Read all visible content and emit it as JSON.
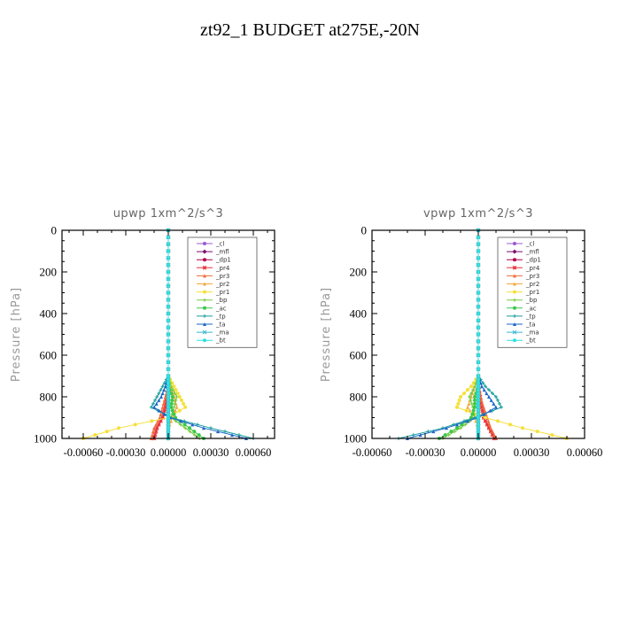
{
  "title": "zt92_1  BUDGET at275E,-20N",
  "chart_data": [
    {
      "type": "line",
      "title": "upwp   1xm^2/s^3",
      "ylabel": "Pressure [hPa]",
      "xlim": [
        -0.00075,
        0.00075
      ],
      "ylim": [
        0,
        1000
      ],
      "y_inverted": true,
      "xticks": [
        -0.0006,
        -0.0003,
        0.0,
        0.0003,
        0.0006
      ],
      "xtick_labels": [
        "-0.00060",
        "-0.00030",
        "0.00000",
        "0.00030",
        "0.00060"
      ],
      "yticks": [
        0,
        200,
        400,
        600,
        800,
        1000
      ],
      "ytick_labels": [
        "0",
        "200",
        "400",
        "600",
        "800",
        "1000"
      ],
      "legend": "top-right",
      "grid": false,
      "y": [
        0,
        100,
        200,
        300,
        400,
        500,
        600,
        700,
        750,
        800,
        850,
        900,
        950,
        1000
      ],
      "series": [
        {
          "name": "_cl",
          "color": "#9b59d0",
          "values": [
            0,
            0,
            0,
            0,
            0,
            0,
            0,
            0,
            0,
            0,
            0,
            0,
            0,
            0
          ]
        },
        {
          "name": "_mfl",
          "color": "#7b0d6e",
          "values": [
            0,
            0,
            0,
            0,
            0,
            0,
            0,
            0,
            0,
            0,
            0,
            0,
            0,
            0
          ]
        },
        {
          "name": "_dp1",
          "color": "#b0004a",
          "values": [
            0,
            0,
            0,
            0,
            0,
            0,
            0,
            0,
            0,
            0,
            0,
            0,
            0,
            0
          ]
        },
        {
          "name": "_pr4",
          "color": "#e8343c",
          "values": [
            0,
            0,
            0,
            0,
            0,
            0,
            0,
            0,
            0,
            -1e-05,
            -2e-05,
            -4e-05,
            -8e-05,
            -0.0001
          ]
        },
        {
          "name": "_pr3",
          "color": "#f06a3a",
          "values": [
            0,
            0,
            0,
            0,
            0,
            0,
            0,
            0,
            0,
            -2e-05,
            -4e-05,
            -6e-05,
            -0.0001,
            -0.00012
          ]
        },
        {
          "name": "_pr2",
          "color": "#f3a93c",
          "values": [
            0,
            0,
            0,
            0,
            0,
            0,
            0,
            0,
            2e-05,
            4e-05,
            6e-05,
            3e-05,
            0,
            0
          ]
        },
        {
          "name": "_pr1",
          "color": "#f5e03a",
          "values": [
            0,
            0,
            0,
            0,
            0,
            0,
            0,
            0,
            4e-05,
            8e-05,
            0.00012,
            0,
            -0.00035,
            -0.0006
          ]
        },
        {
          "name": "_bp",
          "color": "#7ac943",
          "values": [
            0,
            0,
            0,
            0,
            0,
            0,
            0,
            0,
            2e-05,
            6e-05,
            4e-05,
            2e-05,
            0.00012,
            0.00022
          ]
        },
        {
          "name": "_ac",
          "color": "#3cc84a",
          "values": [
            0,
            0,
            0,
            0,
            0,
            0,
            0,
            0,
            0,
            3e-05,
            2e-05,
            5e-05,
            0.00015,
            0.00025
          ]
        },
        {
          "name": "_tp",
          "color": "#1b9e9e",
          "values": [
            0,
            0,
            0,
            0,
            0,
            0,
            0,
            0,
            -4e-05,
            -8e-05,
            -0.00012,
            2e-05,
            0.0003,
            0.0006
          ]
        },
        {
          "name": "_ta",
          "color": "#1a66c8",
          "values": [
            0,
            0,
            0,
            0,
            0,
            0,
            0,
            0,
            -2e-05,
            -5e-05,
            -0.0001,
            1e-05,
            0.00025,
            0.00055
          ]
        },
        {
          "name": "_ma",
          "color": "#39b7d0",
          "values": [
            0,
            0,
            0,
            0,
            0,
            0,
            0,
            0,
            0,
            0,
            0,
            0,
            0,
            0
          ]
        },
        {
          "name": "_bt",
          "color": "#2fe0e0",
          "values": [
            0,
            0,
            0,
            0,
            0,
            0,
            0,
            0,
            0,
            0,
            0,
            0,
            0,
            0
          ]
        }
      ]
    },
    {
      "type": "line",
      "title": "vpwp   1xm^2/s^3",
      "ylabel": "Pressure [hPa]",
      "xlim": [
        -0.0006,
        0.0006
      ],
      "ylim": [
        0,
        1000
      ],
      "y_inverted": true,
      "xticks": [
        -0.0006,
        -0.0003,
        0.0,
        0.0003,
        0.0006
      ],
      "xtick_labels": [
        "-0.00060",
        "-0.00030",
        "0.00000",
        "0.00030",
        "0.00060"
      ],
      "yticks": [
        0,
        200,
        400,
        600,
        800,
        1000
      ],
      "ytick_labels": [
        "0",
        "200",
        "400",
        "600",
        "800",
        "1000"
      ],
      "legend": "top-right",
      "grid": false,
      "y": [
        0,
        100,
        200,
        300,
        400,
        500,
        600,
        700,
        750,
        800,
        850,
        900,
        950,
        1000
      ],
      "series": [
        {
          "name": "_cl",
          "color": "#9b59d0",
          "values": [
            0,
            0,
            0,
            0,
            0,
            0,
            0,
            0,
            0,
            0,
            0,
            0,
            0,
            0
          ]
        },
        {
          "name": "_mfl",
          "color": "#7b0d6e",
          "values": [
            0,
            0,
            0,
            0,
            0,
            0,
            0,
            0,
            0,
            0,
            0,
            0,
            0,
            0
          ]
        },
        {
          "name": "_dp1",
          "color": "#b0004a",
          "values": [
            0,
            0,
            0,
            0,
            0,
            0,
            0,
            0,
            0,
            0,
            0,
            0,
            0,
            0
          ]
        },
        {
          "name": "_pr4",
          "color": "#e8343c",
          "values": [
            0,
            0,
            0,
            0,
            0,
            0,
            0,
            0,
            0,
            1e-05,
            2e-05,
            3e-05,
            6e-05,
            9e-05
          ]
        },
        {
          "name": "_pr3",
          "color": "#f06a3a",
          "values": [
            0,
            0,
            0,
            0,
            0,
            0,
            0,
            0,
            0,
            1e-05,
            3e-05,
            5e-05,
            7e-05,
            0.0001
          ]
        },
        {
          "name": "_pr2",
          "color": "#f3a93c",
          "values": [
            0,
            0,
            0,
            0,
            0,
            0,
            0,
            0,
            -2e-05,
            -4e-05,
            -6e-05,
            -2e-05,
            0,
            0
          ]
        },
        {
          "name": "_pr1",
          "color": "#f5e03a",
          "values": [
            0,
            0,
            0,
            0,
            0,
            0,
            0,
            0,
            -4e-05,
            -0.0001,
            -0.00012,
            4e-05,
            0.00025,
            0.0005
          ]
        },
        {
          "name": "_bp",
          "color": "#7ac943",
          "values": [
            0,
            0,
            0,
            0,
            0,
            0,
            0,
            0,
            -2e-05,
            -5e-05,
            -3e-05,
            -2e-05,
            -0.0001,
            -0.0002
          ]
        },
        {
          "name": "_ac",
          "color": "#3cc84a",
          "values": [
            0,
            0,
            0,
            0,
            0,
            0,
            0,
            0,
            0,
            -2e-05,
            -2e-05,
            -4e-05,
            -0.00012,
            -0.00022
          ]
        },
        {
          "name": "_tp",
          "color": "#1b9e9e",
          "values": [
            0,
            0,
            0,
            0,
            0,
            0,
            0,
            0,
            4e-05,
            0.0001,
            0.00013,
            -2e-05,
            -0.0002,
            -0.00045
          ]
        },
        {
          "name": "_ta",
          "color": "#1a66c8",
          "values": [
            0,
            0,
            0,
            0,
            0,
            0,
            0,
            0,
            2e-05,
            6e-05,
            0.0001,
            0,
            -0.00018,
            -0.0004
          ]
        },
        {
          "name": "_ma",
          "color": "#39b7d0",
          "values": [
            0,
            0,
            0,
            0,
            0,
            0,
            0,
            0,
            0,
            0,
            0,
            0,
            0,
            0
          ]
        },
        {
          "name": "_bt",
          "color": "#2fe0e0",
          "values": [
            0,
            0,
            0,
            0,
            0,
            0,
            0,
            0,
            0,
            0,
            0,
            0,
            0,
            0
          ]
        }
      ]
    }
  ]
}
